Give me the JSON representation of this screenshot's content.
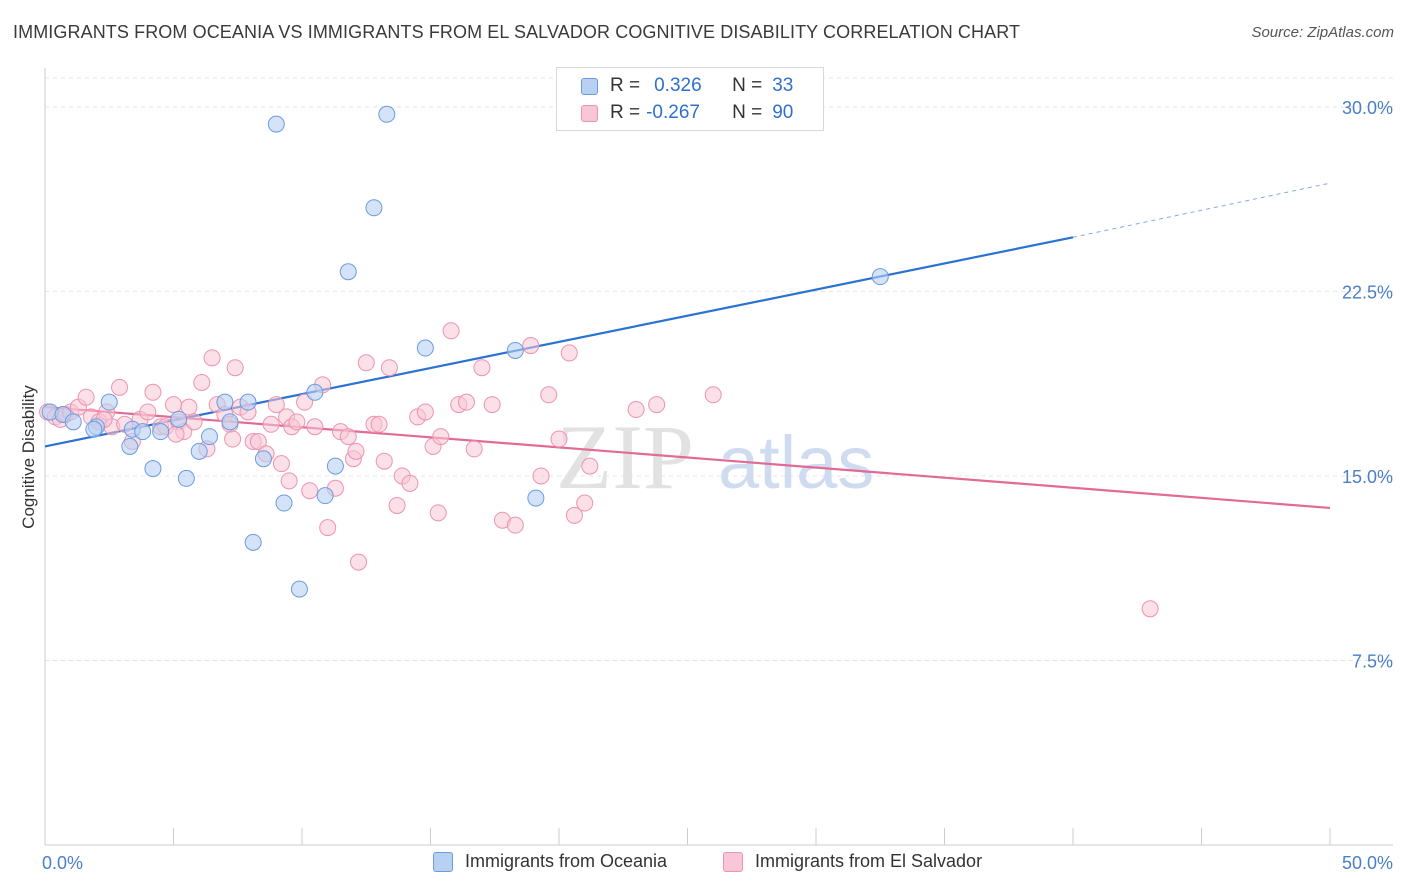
{
  "title": "IMMIGRANTS FROM OCEANIA VS IMMIGRANTS FROM EL SALVADOR COGNITIVE DISABILITY CORRELATION CHART",
  "source": "Source: ZipAtlas.com",
  "watermark": {
    "zip": "ZIP",
    "atlas": "atlas"
  },
  "legend": {
    "oceania": {
      "r_label": "R =",
      "r_value": "0.326",
      "n_label": "N =",
      "n_value": "33"
    },
    "elsalvador": {
      "r_label": "R =",
      "r_value": "-0.267",
      "n_label": "N =",
      "n_value": "90"
    }
  },
  "colors": {
    "oceania_fill": "#b8d0f2",
    "oceania_stroke": "#6b9be0",
    "oceania_line": "#2a72d4",
    "elsalvador_fill": "#f8c6d6",
    "elsalvador_stroke": "#ec93b0",
    "elsalvador_line": "#e26a95",
    "grid": "#e4e4e4",
    "axis": "#cccccc",
    "tick_label": "#4a7fc8"
  },
  "chart_data": {
    "type": "scatter",
    "ylabel": "Cognitive Disability",
    "xlim": [
      0,
      50
    ],
    "ylim": [
      0,
      31.5
    ],
    "x_tick_labels": [
      {
        "value": 0,
        "label": "0.0%"
      },
      {
        "value": 50,
        "label": "50.0%"
      }
    ],
    "y_tick_labels": [
      {
        "value": 7.5,
        "label": "7.5%"
      },
      {
        "value": 15.0,
        "label": "15.0%"
      },
      {
        "value": 22.5,
        "label": "22.5%"
      },
      {
        "value": 30.0,
        "label": "30.0%"
      }
    ],
    "grid": true,
    "legend_position": "top-center",
    "series": [
      {
        "name": "Immigrants from Oceania",
        "points": [
          [
            0.2,
            17.6
          ],
          [
            0.7,
            17.5
          ],
          [
            1.1,
            17.2
          ],
          [
            2.0,
            17.0
          ],
          [
            1.9,
            16.9
          ],
          [
            2.5,
            18.0
          ],
          [
            3.4,
            16.9
          ],
          [
            3.3,
            16.2
          ],
          [
            3.8,
            16.8
          ],
          [
            4.2,
            15.3
          ],
          [
            4.5,
            16.8
          ],
          [
            5.2,
            17.3
          ],
          [
            5.5,
            14.9
          ],
          [
            6.0,
            16.0
          ],
          [
            6.4,
            16.6
          ],
          [
            7.0,
            18.0
          ],
          [
            7.2,
            17.2
          ],
          [
            7.9,
            18.0
          ],
          [
            8.1,
            12.3
          ],
          [
            8.5,
            15.7
          ],
          [
            9.0,
            29.3
          ],
          [
            9.3,
            13.9
          ],
          [
            9.9,
            10.4
          ],
          [
            10.5,
            18.4
          ],
          [
            10.9,
            14.2
          ],
          [
            11.3,
            15.4
          ],
          [
            11.8,
            23.3
          ],
          [
            12.8,
            25.9
          ],
          [
            13.3,
            29.7
          ],
          [
            14.8,
            20.2
          ],
          [
            18.3,
            20.1
          ],
          [
            19.1,
            14.1
          ],
          [
            32.5,
            23.1
          ]
        ],
        "trend": {
          "x0": 0,
          "y0": 16.2,
          "x1": 40,
          "y1": 24.7,
          "dashed_to_x": 50,
          "dashed_to_y": 26.9
        }
      },
      {
        "name": "Immigrants from El Salvador",
        "points": [
          [
            0.1,
            17.6
          ],
          [
            0.4,
            17.4
          ],
          [
            0.6,
            17.3
          ],
          [
            0.8,
            17.5
          ],
          [
            1.0,
            17.6
          ],
          [
            1.3,
            17.8
          ],
          [
            1.6,
            18.2
          ],
          [
            1.8,
            17.4
          ],
          [
            2.1,
            17.2
          ],
          [
            2.4,
            17.6
          ],
          [
            2.6,
            17.0
          ],
          [
            2.9,
            18.6
          ],
          [
            3.1,
            17.1
          ],
          [
            3.4,
            16.4
          ],
          [
            3.7,
            17.3
          ],
          [
            4.0,
            17.6
          ],
          [
            4.2,
            18.4
          ],
          [
            4.5,
            17.0
          ],
          [
            4.7,
            17.0
          ],
          [
            5.0,
            17.9
          ],
          [
            5.2,
            17.2
          ],
          [
            5.4,
            16.8
          ],
          [
            5.6,
            17.8
          ],
          [
            5.8,
            17.2
          ],
          [
            6.1,
            18.8
          ],
          [
            6.3,
            16.1
          ],
          [
            6.5,
            19.8
          ],
          [
            6.7,
            17.9
          ],
          [
            7.0,
            17.5
          ],
          [
            7.2,
            17.1
          ],
          [
            7.4,
            19.4
          ],
          [
            7.6,
            17.8
          ],
          [
            7.9,
            17.6
          ],
          [
            8.1,
            16.4
          ],
          [
            8.3,
            16.4
          ],
          [
            8.6,
            15.9
          ],
          [
            8.8,
            17.1
          ],
          [
            9.0,
            17.9
          ],
          [
            9.2,
            15.5
          ],
          [
            9.4,
            17.4
          ],
          [
            9.6,
            17.0
          ],
          [
            9.8,
            17.2
          ],
          [
            10.1,
            18.0
          ],
          [
            10.3,
            14.4
          ],
          [
            10.5,
            17.0
          ],
          [
            10.8,
            18.7
          ],
          [
            11.0,
            12.9
          ],
          [
            11.3,
            14.5
          ],
          [
            11.5,
            16.8
          ],
          [
            11.8,
            16.6
          ],
          [
            12.0,
            15.7
          ],
          [
            12.2,
            11.5
          ],
          [
            12.5,
            19.6
          ],
          [
            12.8,
            17.1
          ],
          [
            13.0,
            17.1
          ],
          [
            13.2,
            15.6
          ],
          [
            13.4,
            19.4
          ],
          [
            13.7,
            13.8
          ],
          [
            13.9,
            15.0
          ],
          [
            14.2,
            14.7
          ],
          [
            14.5,
            17.4
          ],
          [
            14.8,
            17.6
          ],
          [
            15.1,
            16.2
          ],
          [
            15.4,
            16.6
          ],
          [
            15.8,
            20.9
          ],
          [
            16.1,
            17.9
          ],
          [
            16.4,
            18.0
          ],
          [
            16.7,
            16.1
          ],
          [
            17.0,
            19.4
          ],
          [
            17.4,
            17.9
          ],
          [
            17.8,
            13.2
          ],
          [
            18.3,
            13.0
          ],
          [
            18.9,
            20.3
          ],
          [
            19.3,
            15.0
          ],
          [
            19.6,
            18.3
          ],
          [
            20.0,
            16.5
          ],
          [
            20.4,
            20.0
          ],
          [
            20.6,
            13.4
          ],
          [
            21.0,
            13.9
          ],
          [
            21.2,
            15.4
          ],
          [
            23.0,
            17.7
          ],
          [
            23.8,
            17.9
          ],
          [
            26.0,
            18.3
          ],
          [
            43.0,
            9.6
          ],
          [
            15.3,
            13.5
          ],
          [
            12.1,
            16.0
          ],
          [
            9.5,
            14.8
          ],
          [
            5.1,
            16.7
          ],
          [
            7.3,
            16.5
          ],
          [
            2.3,
            17.3
          ]
        ],
        "trend": {
          "x0": 0,
          "y0": 17.8,
          "x1": 50,
          "y1": 13.7
        }
      }
    ]
  }
}
